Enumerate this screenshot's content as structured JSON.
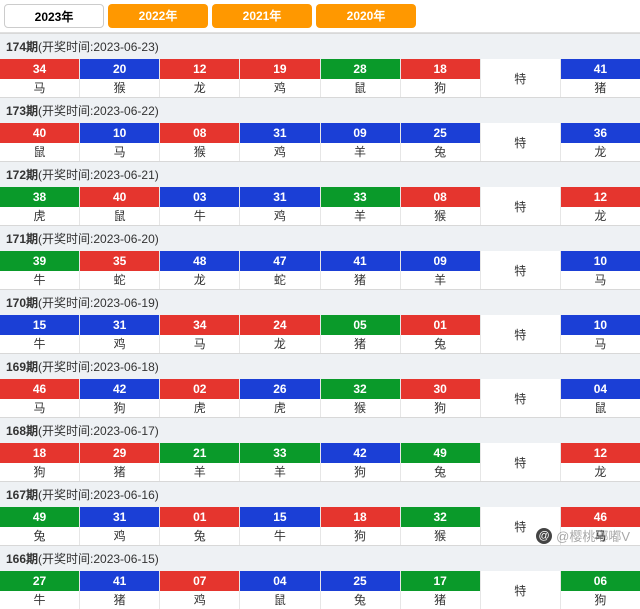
{
  "tabs": [
    {
      "label": "2023年",
      "active": true
    },
    {
      "label": "2022年",
      "active": false
    },
    {
      "label": "2021年",
      "active": false
    },
    {
      "label": "2020年",
      "active": false
    }
  ],
  "te_label": "特",
  "watermark": "@樱桃嘟嘟V",
  "colors": {
    "red": "#e5352e",
    "blue": "#1b3fd6",
    "green": "#0a9a2a"
  },
  "rows": [
    {
      "issue": "174",
      "date": "2023-06-23",
      "balls": [
        {
          "n": "34",
          "z": "马",
          "c": "red"
        },
        {
          "n": "20",
          "z": "猴",
          "c": "blue"
        },
        {
          "n": "12",
          "z": "龙",
          "c": "red"
        },
        {
          "n": "19",
          "z": "鸡",
          "c": "red"
        },
        {
          "n": "28",
          "z": "鼠",
          "c": "green"
        },
        {
          "n": "18",
          "z": "狗",
          "c": "red"
        }
      ],
      "special": {
        "n": "41",
        "z": "猪",
        "c": "blue"
      }
    },
    {
      "issue": "173",
      "date": "2023-06-22",
      "balls": [
        {
          "n": "40",
          "z": "鼠",
          "c": "red"
        },
        {
          "n": "10",
          "z": "马",
          "c": "blue"
        },
        {
          "n": "08",
          "z": "猴",
          "c": "red"
        },
        {
          "n": "31",
          "z": "鸡",
          "c": "blue"
        },
        {
          "n": "09",
          "z": "羊",
          "c": "blue"
        },
        {
          "n": "25",
          "z": "兔",
          "c": "blue"
        }
      ],
      "special": {
        "n": "36",
        "z": "龙",
        "c": "blue"
      }
    },
    {
      "issue": "172",
      "date": "2023-06-21",
      "balls": [
        {
          "n": "38",
          "z": "虎",
          "c": "green"
        },
        {
          "n": "40",
          "z": "鼠",
          "c": "red"
        },
        {
          "n": "03",
          "z": "牛",
          "c": "blue"
        },
        {
          "n": "31",
          "z": "鸡",
          "c": "blue"
        },
        {
          "n": "33",
          "z": "羊",
          "c": "green"
        },
        {
          "n": "08",
          "z": "猴",
          "c": "red"
        }
      ],
      "special": {
        "n": "12",
        "z": "龙",
        "c": "red"
      }
    },
    {
      "issue": "171",
      "date": "2023-06-20",
      "balls": [
        {
          "n": "39",
          "z": "牛",
          "c": "green"
        },
        {
          "n": "35",
          "z": "蛇",
          "c": "red"
        },
        {
          "n": "48",
          "z": "龙",
          "c": "blue"
        },
        {
          "n": "47",
          "z": "蛇",
          "c": "blue"
        },
        {
          "n": "41",
          "z": "猪",
          "c": "blue"
        },
        {
          "n": "09",
          "z": "羊",
          "c": "blue"
        }
      ],
      "special": {
        "n": "10",
        "z": "马",
        "c": "blue"
      }
    },
    {
      "issue": "170",
      "date": "2023-06-19",
      "balls": [
        {
          "n": "15",
          "z": "牛",
          "c": "blue"
        },
        {
          "n": "31",
          "z": "鸡",
          "c": "blue"
        },
        {
          "n": "34",
          "z": "马",
          "c": "red"
        },
        {
          "n": "24",
          "z": "龙",
          "c": "red"
        },
        {
          "n": "05",
          "z": "猪",
          "c": "green"
        },
        {
          "n": "01",
          "z": "兔",
          "c": "red"
        }
      ],
      "special": {
        "n": "10",
        "z": "马",
        "c": "blue"
      }
    },
    {
      "issue": "169",
      "date": "2023-06-18",
      "balls": [
        {
          "n": "46",
          "z": "马",
          "c": "red"
        },
        {
          "n": "42",
          "z": "狗",
          "c": "blue"
        },
        {
          "n": "02",
          "z": "虎",
          "c": "red"
        },
        {
          "n": "26",
          "z": "虎",
          "c": "blue"
        },
        {
          "n": "32",
          "z": "猴",
          "c": "green"
        },
        {
          "n": "30",
          "z": "狗",
          "c": "red"
        }
      ],
      "special": {
        "n": "04",
        "z": "鼠",
        "c": "blue"
      }
    },
    {
      "issue": "168",
      "date": "2023-06-17",
      "balls": [
        {
          "n": "18",
          "z": "狗",
          "c": "red"
        },
        {
          "n": "29",
          "z": "猪",
          "c": "red"
        },
        {
          "n": "21",
          "z": "羊",
          "c": "green"
        },
        {
          "n": "33",
          "z": "羊",
          "c": "green"
        },
        {
          "n": "42",
          "z": "狗",
          "c": "blue"
        },
        {
          "n": "49",
          "z": "兔",
          "c": "green"
        }
      ],
      "special": {
        "n": "12",
        "z": "龙",
        "c": "red"
      }
    },
    {
      "issue": "167",
      "date": "2023-06-16",
      "balls": [
        {
          "n": "49",
          "z": "兔",
          "c": "green"
        },
        {
          "n": "31",
          "z": "鸡",
          "c": "blue"
        },
        {
          "n": "01",
          "z": "兔",
          "c": "red"
        },
        {
          "n": "15",
          "z": "牛",
          "c": "blue"
        },
        {
          "n": "18",
          "z": "狗",
          "c": "red"
        },
        {
          "n": "32",
          "z": "猴",
          "c": "green"
        }
      ],
      "special": {
        "n": "46",
        "z": "马",
        "c": "red"
      }
    },
    {
      "issue": "166",
      "date": "2023-06-15",
      "balls": [
        {
          "n": "27",
          "z": "牛",
          "c": "green"
        },
        {
          "n": "41",
          "z": "猪",
          "c": "blue"
        },
        {
          "n": "07",
          "z": "鸡",
          "c": "red"
        },
        {
          "n": "04",
          "z": "鼠",
          "c": "blue"
        },
        {
          "n": "25",
          "z": "兔",
          "c": "blue"
        },
        {
          "n": "17",
          "z": "猪",
          "c": "green"
        }
      ],
      "special": {
        "n": "06",
        "z": "狗",
        "c": "green"
      }
    }
  ]
}
